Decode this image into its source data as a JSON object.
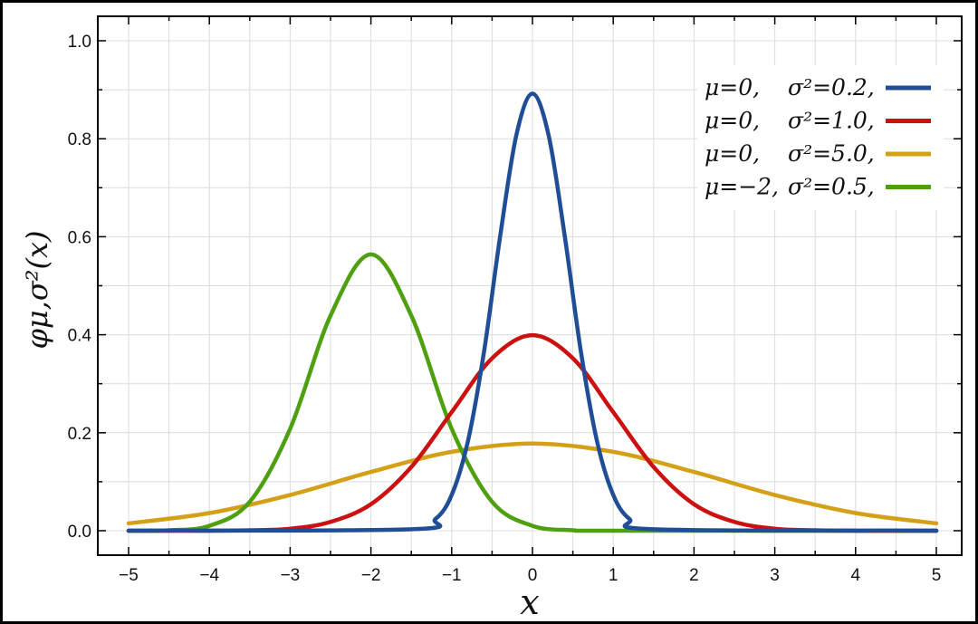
{
  "chart_data": {
    "type": "line",
    "xlabel": "x",
    "ylabel": "φμ,σ²(x)",
    "xlim": [
      -5,
      5
    ],
    "ylim": [
      0,
      1.0
    ],
    "x_ticks": [
      "−5",
      "−4",
      "−3",
      "−2",
      "−1",
      "0",
      "1",
      "2",
      "3",
      "4",
      "5"
    ],
    "y_ticks": [
      "0.0",
      "0.2",
      "0.4",
      "0.6",
      "0.8",
      "1.0"
    ],
    "grid": true,
    "legend_position": "top-right",
    "series": [
      {
        "mu_label": "μ=0,",
        "sigma_label": "σ²=0.2,",
        "color": "#1f4e96",
        "x": [
          -5,
          -1.5,
          -1.2,
          -1.0,
          -0.8,
          -0.6,
          -0.4,
          -0.2,
          0,
          0.2,
          0.4,
          0.6,
          0.8,
          1.0,
          1.2,
          1.5,
          5
        ],
        "y": [
          0.0,
          0.003,
          0.024,
          0.073,
          0.182,
          0.365,
          0.601,
          0.807,
          0.892,
          0.807,
          0.601,
          0.365,
          0.182,
          0.073,
          0.024,
          0.003,
          0.0
        ]
      },
      {
        "mu_label": "μ=0,",
        "sigma_label": "σ²=1.0,",
        "color": "#cc1111",
        "x": [
          -5,
          -4,
          -3.5,
          -3,
          -2.5,
          -2,
          -1.5,
          -1,
          -0.5,
          0,
          0.5,
          1,
          1.5,
          2,
          2.5,
          3,
          3.5,
          4,
          5
        ],
        "y": [
          0.0,
          0.0001,
          0.0009,
          0.004,
          0.018,
          0.054,
          0.13,
          0.242,
          0.352,
          0.399,
          0.352,
          0.242,
          0.13,
          0.054,
          0.018,
          0.004,
          0.0009,
          0.0001,
          0.0
        ]
      },
      {
        "mu_label": "μ=0,",
        "sigma_label": "σ²=5.0,",
        "color": "#d4a017",
        "x": [
          -5,
          -4,
          -3,
          -2,
          -1,
          0,
          1,
          2,
          3,
          4,
          5
        ],
        "y": [
          0.015,
          0.036,
          0.073,
          0.12,
          0.161,
          0.178,
          0.161,
          0.12,
          0.073,
          0.036,
          0.015
        ]
      },
      {
        "mu_label": "μ=−2,",
        "sigma_label": "σ²=0.5,",
        "color": "#4fa010",
        "x": [
          -5,
          -4.5,
          -4,
          -3.5,
          -3,
          -2.5,
          -2,
          -1.5,
          -1,
          -0.5,
          0,
          0.5,
          1,
          5
        ],
        "y": [
          0.0,
          0.001,
          0.01,
          0.059,
          0.208,
          0.439,
          0.564,
          0.439,
          0.208,
          0.059,
          0.01,
          0.001,
          0.0,
          0.0
        ]
      }
    ]
  }
}
